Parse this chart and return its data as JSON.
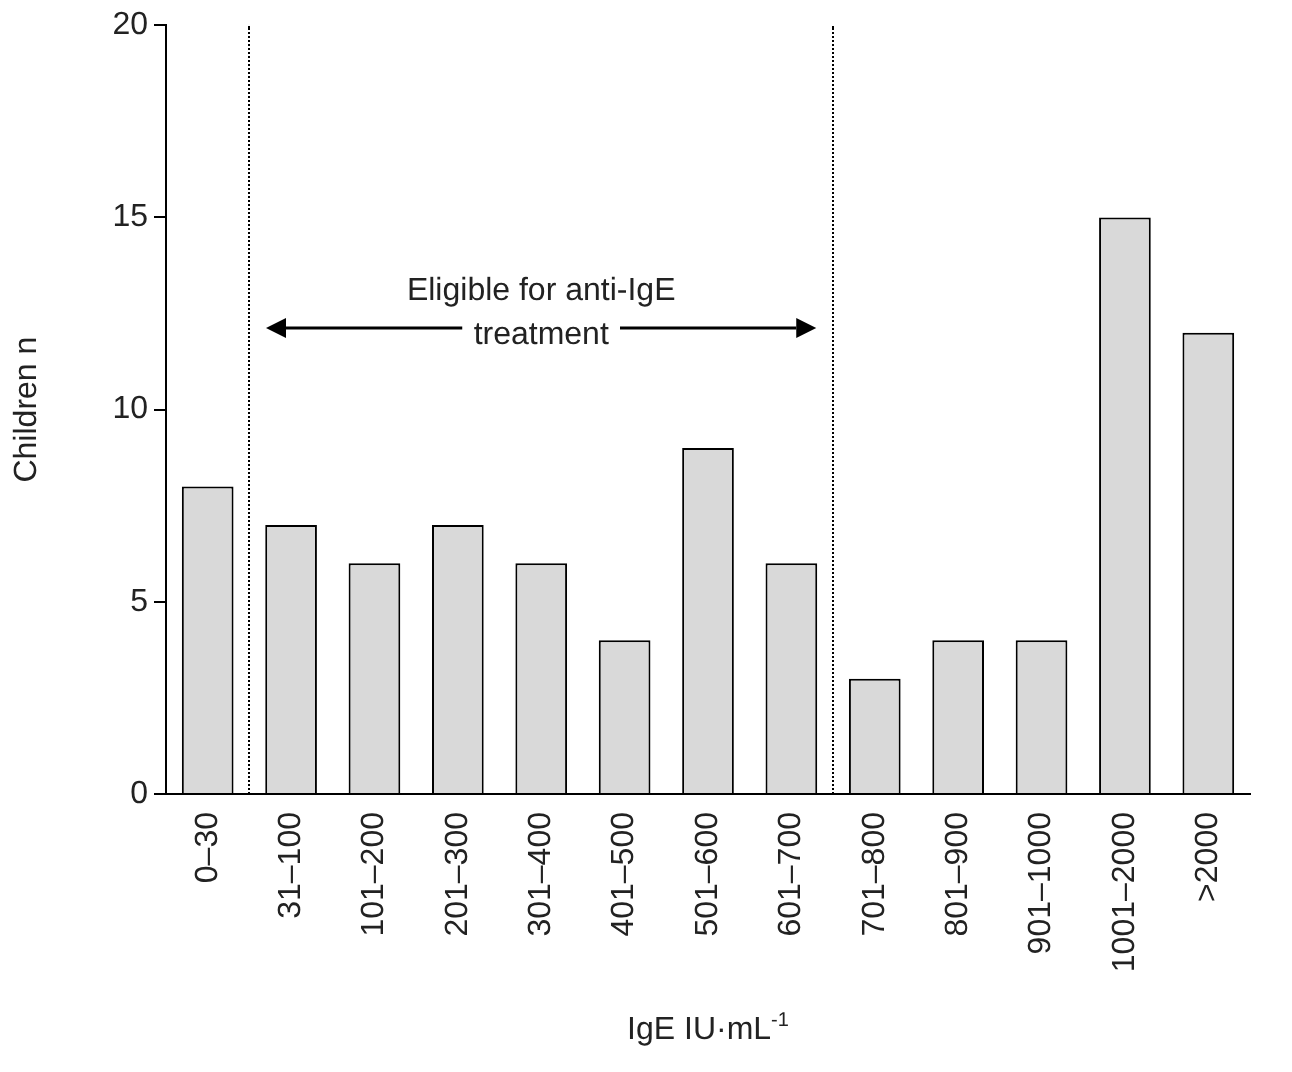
{
  "chart_data": {
    "type": "bar",
    "xlabel": "IgE IU·mL$^{-1}$",
    "ylabel": "Children n",
    "categories": [
      "0–30",
      "31–100",
      "101–200",
      "201–300",
      "301–400",
      "401–500",
      "501–600",
      "601–700",
      "701–800",
      "801–900",
      "901–1000",
      "1001–2000",
      ">2000"
    ],
    "values": [
      8,
      7,
      6,
      7,
      6,
      4,
      9,
      6,
      3,
      4,
      4,
      15,
      12
    ],
    "color": "#d9d9d9",
    "ylim": [
      0,
      20
    ],
    "yticks": [
      0,
      5,
      10,
      15,
      20
    ],
    "grid": false,
    "legend": false,
    "annotations": [
      "Eligible for anti-IgE treatment"
    ]
  }
}
